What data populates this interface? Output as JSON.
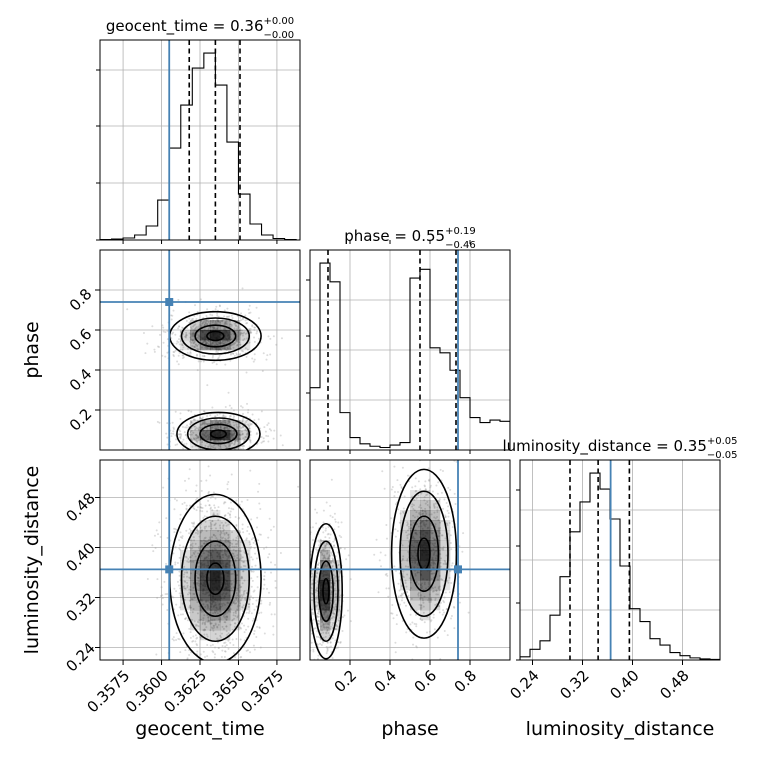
{
  "chart_data": {
    "type": "corner",
    "parameters": [
      {
        "name": "geocent_time",
        "title": {
          "label": "geocent_time",
          "value": "0.36",
          "plus": "+0.00",
          "minus": "−0.00"
        },
        "range": [
          0.356,
          0.369
        ],
        "ticks": [
          0.3575,
          0.36,
          0.3625,
          0.365,
          0.3675
        ],
        "tick_labels": [
          "0.3575",
          "0.3600",
          "0.3625",
          "0.3650",
          "0.3675"
        ],
        "truth": 0.3605,
        "quantiles": [
          0.3618,
          0.3635,
          0.3651
        ],
        "hist_bins": [
          0.356,
          0.35675,
          0.3575,
          0.35825,
          0.359,
          0.35975,
          0.3605,
          0.36125,
          0.362,
          0.36275,
          0.3635,
          0.36425,
          0.365,
          0.36575,
          0.3665,
          0.36725,
          0.368,
          0.36875
        ],
        "hist_values": [
          0.5,
          1,
          2,
          5,
          14,
          40,
          92,
          135,
          172,
          187,
          155,
          98,
          46,
          16,
          5,
          1.5,
          0.5
        ]
      },
      {
        "name": "phase",
        "title": {
          "label": "phase",
          "value": "0.55",
          "plus": "+0.19",
          "minus": "−0.46"
        },
        "range": [
          0.0,
          1.0
        ],
        "ticks": [
          0.2,
          0.4,
          0.6,
          0.8
        ],
        "tick_labels": [
          "0.2",
          "0.4",
          "0.6",
          "0.8"
        ],
        "truth": 0.74,
        "quantiles": [
          0.09,
          0.55,
          0.73
        ],
        "hist_bins": [
          0.0,
          0.05,
          0.1,
          0.15,
          0.2,
          0.25,
          0.3,
          0.35,
          0.4,
          0.45,
          0.5,
          0.55,
          0.6,
          0.65,
          0.7,
          0.75,
          0.8,
          0.85,
          0.9,
          0.95,
          1.0
        ],
        "hist_values": [
          50,
          150,
          135,
          30,
          10,
          5,
          3,
          2,
          4,
          6,
          138,
          145,
          82,
          78,
          64,
          42,
          26,
          22,
          24,
          23
        ]
      },
      {
        "name": "luminosity_distance",
        "title": {
          "label": "luminosity_distance",
          "value": "0.35",
          "plus": "+0.05",
          "minus": "−0.05"
        },
        "range": [
          0.22,
          0.54
        ],
        "ticks": [
          0.24,
          0.32,
          0.4,
          0.48
        ],
        "tick_labels": [
          "0.24",
          "0.32",
          "0.40",
          "0.48"
        ],
        "truth": 0.365,
        "quantiles": [
          0.3,
          0.345,
          0.395
        ],
        "hist_bins": [
          0.22,
          0.236,
          0.252,
          0.268,
          0.284,
          0.3,
          0.316,
          0.332,
          0.348,
          0.364,
          0.38,
          0.396,
          0.412,
          0.428,
          0.444,
          0.46,
          0.476,
          0.492,
          0.508,
          0.524,
          0.54
        ],
        "hist_values": [
          3,
          10,
          18,
          42,
          78,
          120,
          148,
          175,
          160,
          132,
          88,
          48,
          36,
          20,
          14,
          7,
          4,
          2,
          1,
          0.5
        ]
      }
    ],
    "pairs": [
      {
        "x_param": "geocent_time",
        "y_param": "phase",
        "truth_point": [
          0.3605,
          0.74
        ],
        "modes": [
          {
            "center": [
              0.3635,
              0.57
            ],
            "spread": [
              0.0011,
              0.045
            ],
            "weight": 0.5
          },
          {
            "center": [
              0.3637,
              0.08
            ],
            "spread": [
              0.001,
              0.04
            ],
            "weight": 0.5
          }
        ]
      },
      {
        "x_param": "geocent_time",
        "y_param": "luminosity_distance",
        "truth_point": [
          0.3605,
          0.365
        ],
        "modes": [
          {
            "center": [
              0.3635,
              0.35
            ],
            "spread": [
              0.0011,
              0.05
            ],
            "weight": 1.0
          }
        ]
      },
      {
        "x_param": "phase",
        "y_param": "luminosity_distance",
        "truth_point": [
          0.74,
          0.365
        ],
        "modes": [
          {
            "center": [
              0.08,
              0.33
            ],
            "spread": [
              0.03,
              0.04
            ],
            "weight": 0.5
          },
          {
            "center": [
              0.57,
              0.39
            ],
            "spread": [
              0.06,
              0.05
            ],
            "weight": 0.5
          }
        ]
      }
    ],
    "grid": true,
    "colors": {
      "truth": "#4682b4",
      "histogram": "#000000",
      "quantile": "#000000",
      "grid": "#b0b0b0",
      "scatter": "#9a9a9a",
      "density": "#000000"
    }
  }
}
